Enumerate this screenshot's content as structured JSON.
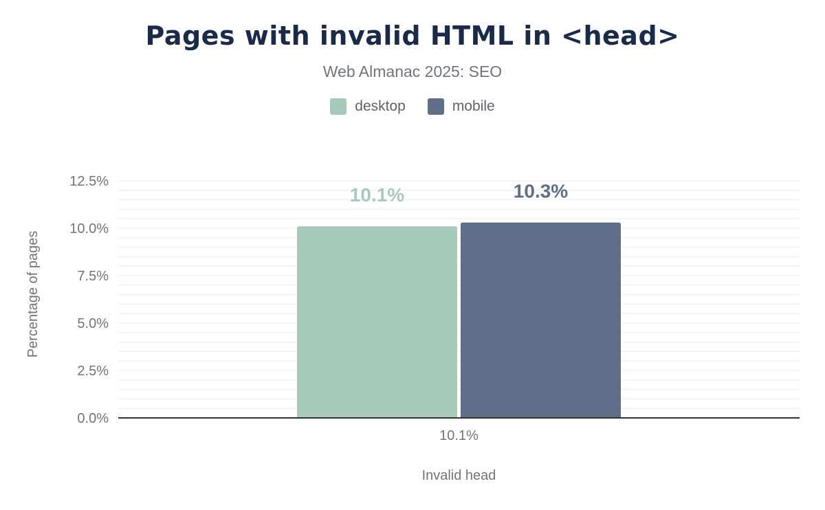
{
  "chart_data": {
    "type": "bar",
    "title": "Pages with invalid HTML in <head>",
    "subtitle": "Web Almanac 2025: SEO",
    "categories": [
      "10.1%"
    ],
    "xlabel": "Invalid head",
    "ylabel": "Percentage of pages",
    "ylim": [
      0,
      12.5
    ],
    "yticks": [
      "0.0%",
      "2.5%",
      "5.0%",
      "7.5%",
      "10.0%",
      "12.5%"
    ],
    "grid": true,
    "legend_position": "top",
    "series": [
      {
        "name": "desktop",
        "values": [
          10.1
        ],
        "label": "10.1%",
        "color": "#a8cabb"
      },
      {
        "name": "mobile",
        "values": [
          10.3
        ],
        "label": "10.3%",
        "color": "#5f6f8a"
      }
    ]
  }
}
